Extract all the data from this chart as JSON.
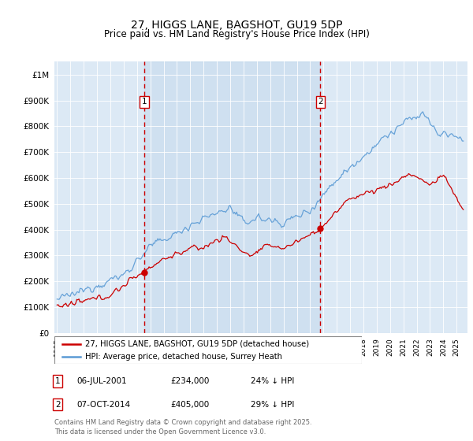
{
  "title": "27, HIGGS LANE, BAGSHOT, GU19 5DP",
  "subtitle": "Price paid vs. HM Land Registry's House Price Index (HPI)",
  "legend_line1": "27, HIGGS LANE, BAGSHOT, GU19 5DP (detached house)",
  "legend_line2": "HPI: Average price, detached house, Surrey Heath",
  "annotation1_label": "1",
  "annotation1_date": "06-JUL-2001",
  "annotation1_price": "£234,000",
  "annotation1_pct": "24% ↓ HPI",
  "annotation1_year": 2001.54,
  "annotation2_label": "2",
  "annotation2_date": "07-OCT-2014",
  "annotation2_price": "£405,000",
  "annotation2_pct": "29% ↓ HPI",
  "annotation2_year": 2014.77,
  "footer": "Contains HM Land Registry data © Crown copyright and database right 2025.\nThis data is licensed under the Open Government Licence v3.0.",
  "red_color": "#cc0000",
  "blue_color": "#5b9bd5",
  "highlight_color": "#ccdcee",
  "background_color": "#dce9f5",
  "ylim": [
    0,
    1050000
  ],
  "xlim": [
    1994.8,
    2025.8
  ],
  "yticks": [
    0,
    100000,
    200000,
    300000,
    400000,
    500000,
    600000,
    700000,
    800000,
    900000,
    1000000
  ]
}
